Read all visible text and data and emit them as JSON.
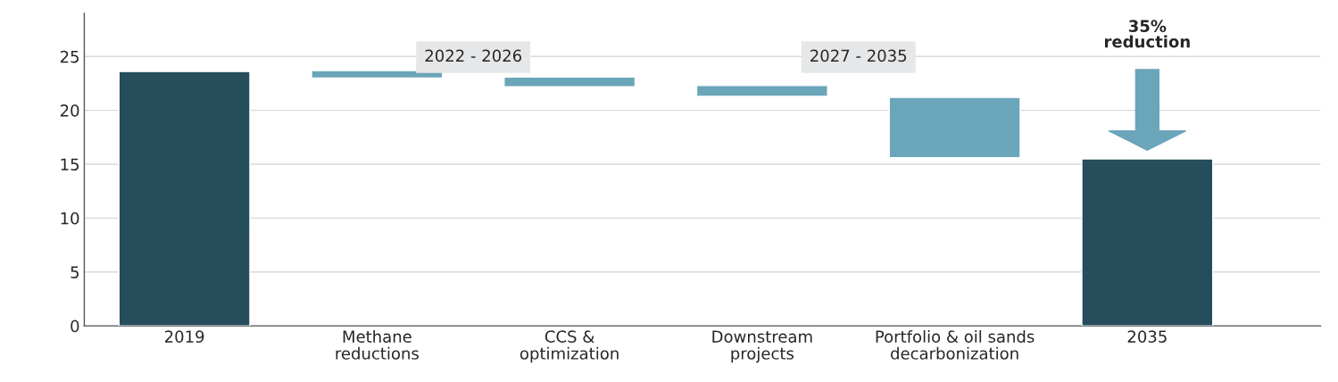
{
  "chart_data": {
    "type": "bar",
    "categories": [
      "2019",
      "Methane\nreductions",
      "CCS &\noptimization",
      "Downstream\nprojects",
      "Portfolio & oil sands\ndecarbonization",
      "2035"
    ],
    "values": [
      23.6,
      0.7,
      0.9,
      1.0,
      5.6,
      15.5
    ],
    "base": [
      0,
      23.0,
      22.2,
      21.3,
      15.6,
      0
    ],
    "colors": [
      "#264d5b",
      "#6ba5b9",
      "#6ba5b9",
      "#6ba5b9",
      "#6ba5b9",
      "#264d5b"
    ],
    "ylim": [
      0,
      29
    ],
    "yticks": [
      0,
      5,
      10,
      15,
      20,
      25
    ],
    "grid": "y",
    "annotations": [
      "2022 - 2026",
      "2027 - 2035",
      "35%\nreduction"
    ]
  }
}
